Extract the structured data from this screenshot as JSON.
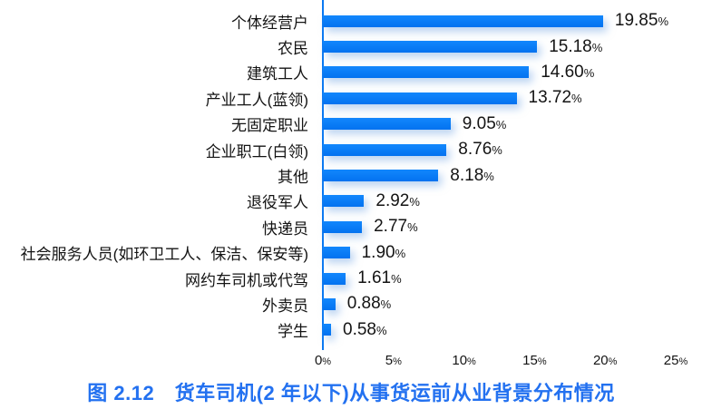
{
  "chart_data": {
    "type": "bar",
    "orientation": "horizontal",
    "title": "图 2.12　货车司机(2 年以下)从事货运前从业背景分布情况",
    "categories": [
      "个体经营户",
      "农民",
      "建筑工人",
      "产业工人(蓝领)",
      "无固定职业",
      "企业职工(白领)",
      "其他",
      "退役军人",
      "快递员",
      "社会服务人员(如环卫工人、保洁、保安等)",
      "网约车司机或代驾",
      "外卖员",
      "学生"
    ],
    "values": [
      "19.85",
      "15.18",
      "14.60",
      "13.72",
      "9.05",
      "8.76",
      "8.18",
      "2.92",
      "2.77",
      "1.90",
      "1.61",
      "0.88",
      "0.58"
    ],
    "value_suffix": "%",
    "x_ticks": [
      "0",
      "5",
      "10",
      "15",
      "20",
      "25"
    ],
    "x_tick_suffix": "%",
    "xlim": [
      0,
      25
    ],
    "grid": false,
    "legend": "none",
    "bar_color": "#0778f5",
    "axis_color": "#0b79f2",
    "title_color": "#2371f0",
    "text_color": "#141414"
  }
}
